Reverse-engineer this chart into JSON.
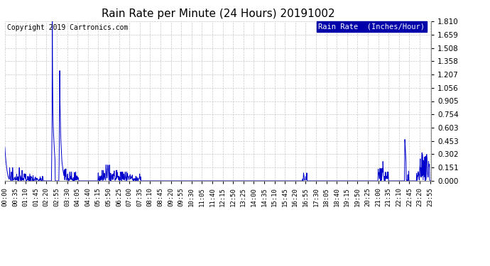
{
  "title": "Rain Rate per Minute (24 Hours) 20191002",
  "copyright_text": "Copyright 2019 Cartronics.com",
  "legend_label": "Rain Rate  (Inches/Hour)",
  "yticks": [
    0.0,
    0.151,
    0.302,
    0.453,
    0.603,
    0.754,
    0.905,
    1.056,
    1.207,
    1.358,
    1.508,
    1.659,
    1.81
  ],
  "ylim": [
    0.0,
    1.81
  ],
  "line_color": "#0000cc",
  "legend_bg": "#0000aa",
  "legend_text_color": "#ffffff",
  "bg_color": "#ffffff",
  "grid_color": "#bbbbbb",
  "title_fontsize": 11,
  "copyright_fontsize": 7,
  "tick_fontsize": 6.5,
  "total_minutes": 1440,
  "tick_step": 35
}
